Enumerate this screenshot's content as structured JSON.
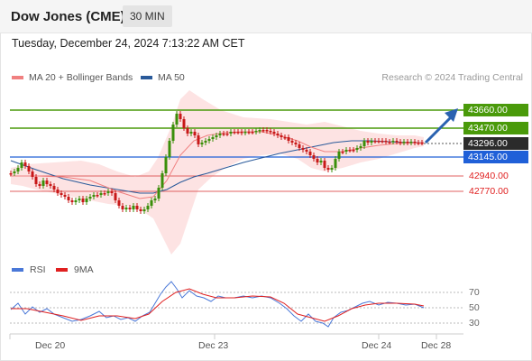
{
  "header": {
    "title": "Dow Jones (CME)",
    "interval": "30 MIN"
  },
  "timestamp": "Tuesday, December 24, 2024 7:13:22 AM CET",
  "legend": {
    "ma20_label": "MA 20 + Bollinger Bands",
    "ma20_color": "#f08080",
    "ma50_label": "MA 50",
    "ma50_color": "#2a5a9a"
  },
  "credit": "Research © 2024 Trading Central",
  "levels": [
    {
      "name": "resistance-2",
      "label": "43660.00",
      "value": 43660,
      "style": "green"
    },
    {
      "name": "resistance-1",
      "label": "43470.00",
      "value": 43470,
      "style": "green"
    },
    {
      "name": "last-price",
      "label": "43296.00",
      "value": 43296,
      "style": "dark"
    },
    {
      "name": "pivot",
      "label": "43145.00",
      "value": 43145,
      "style": "blue"
    },
    {
      "name": "support-1",
      "label": "42940.00",
      "value": 42940,
      "style": "red"
    },
    {
      "name": "support-2",
      "label": "42770.00",
      "value": 42770,
      "style": "red"
    }
  ],
  "colors": {
    "green": "#4a9a0a",
    "blue": "#2060d8",
    "red": "#e02020",
    "dark": "#2b2b2b",
    "bullish": "#3a8f0a",
    "bearish": "#c81818",
    "band": "#fde3e3",
    "arrow": "#2a62b0",
    "rsi": "#4a78d8",
    "ma9": "#e02020"
  },
  "rsi_legend": {
    "rsi_label": "RSI",
    "ma9_label": "9MA"
  },
  "rsi_ticks": [
    "70",
    "50",
    "30"
  ],
  "x_labels": [
    "Dec 20",
    "Dec 23",
    "Dec 24",
    "Dec 28"
  ]
}
